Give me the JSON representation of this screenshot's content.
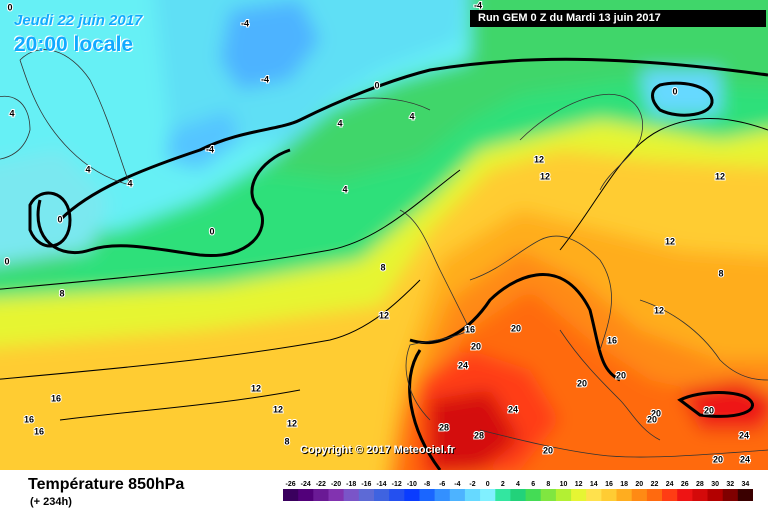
{
  "header": {
    "date": "Jeudi 22 juin 2017",
    "time": "20:00 locale",
    "run": "Run GEM 0 Z du Mardi 13 juin 2017"
  },
  "copyright": "Copyright © 2017 Meteociel.fr",
  "footer": {
    "title": "Température 850hPa",
    "subtitle": "(+ 234h)"
  },
  "legend": {
    "values": [
      "-26",
      "-24",
      "-22",
      "-20",
      "-18",
      "-16",
      "-14",
      "-12",
      "-10",
      "-8",
      "-6",
      "-4",
      "-2",
      "0",
      "2",
      "4",
      "6",
      "8",
      "10",
      "12",
      "14",
      "16",
      "18",
      "20",
      "22",
      "24",
      "26",
      "28",
      "30",
      "32",
      "34"
    ],
    "colors": [
      "#3a005e",
      "#52007a",
      "#6a1a95",
      "#8233b0",
      "#7a55c8",
      "#5d6ad6",
      "#3f63e0",
      "#2450f0",
      "#0a3cff",
      "#1a66ff",
      "#3390ff",
      "#4db3ff",
      "#66d9ff",
      "#80f0ff",
      "#33e6a0",
      "#22d27a",
      "#44dc55",
      "#80e640",
      "#b3f033",
      "#e6f533",
      "#ffe14d",
      "#ffcc33",
      "#ffad1f",
      "#ff8a14",
      "#ff6a0f",
      "#ff3d14",
      "#ee1414",
      "#d40a0a",
      "#b30000",
      "#800000",
      "#3a0000"
    ]
  },
  "isotherm_labels": [
    {
      "t": "0"
    },
    {
      "t": "-4"
    },
    {
      "t": "4"
    },
    {
      "t": "-4"
    },
    {
      "t": "-4"
    },
    {
      "t": "0"
    },
    {
      "t": "-4"
    },
    {
      "t": "0"
    },
    {
      "t": "4"
    },
    {
      "t": "4"
    },
    {
      "t": "4"
    },
    {
      "t": "4"
    },
    {
      "t": "4"
    },
    {
      "t": "0"
    },
    {
      "t": "0"
    },
    {
      "t": "8"
    },
    {
      "t": "8"
    },
    {
      "t": "12"
    },
    {
      "t": "12"
    },
    {
      "t": "12"
    },
    {
      "t": "12"
    },
    {
      "t": "8"
    },
    {
      "t": "12"
    },
    {
      "t": "12"
    },
    {
      "t": "16"
    },
    {
      "t": "16"
    },
    {
      "t": "20"
    },
    {
      "t": "20"
    },
    {
      "t": "24"
    },
    {
      "t": "20"
    },
    {
      "t": "20"
    },
    {
      "t": "20"
    },
    {
      "t": "24"
    },
    {
      "t": "28"
    },
    {
      "t": "28"
    },
    {
      "t": "20"
    },
    {
      "t": "20"
    },
    {
      "t": "20"
    },
    {
      "t": "24"
    },
    {
      "t": "24"
    },
    {
      "t": "20"
    },
    {
      "t": "16"
    },
    {
      "t": "16"
    },
    {
      "t": "16"
    },
    {
      "t": "12"
    },
    {
      "t": "12"
    },
    {
      "t": "8"
    },
    {
      "t": "12"
    },
    {
      "t": "0"
    }
  ]
}
